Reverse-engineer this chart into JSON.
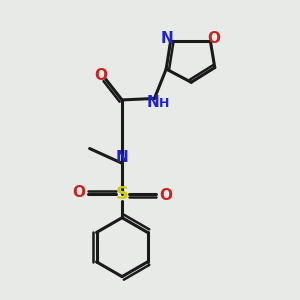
{
  "bg_color": "#e8eae8",
  "bond_color": "#1a1a1a",
  "N_color": "#2222cc",
  "O_color": "#cc2222",
  "S_color": "#cccc00",
  "NH_color": "#2222cc",
  "figsize": [
    3.0,
    3.0
  ],
  "dpi": 100,
  "xlim": [
    0,
    10
  ],
  "ylim": [
    0,
    10
  ]
}
